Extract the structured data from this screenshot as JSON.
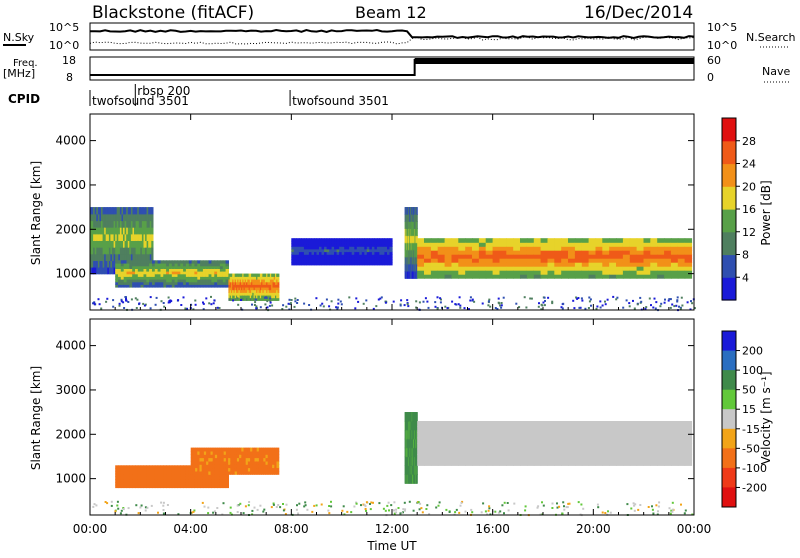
{
  "header": {
    "station": "Blackstone (fitACF)",
    "beam": "Beam 12",
    "date": "16/Dec/2014"
  },
  "side_labels": {
    "nsky": "N.Sky",
    "nsearch": "N.Search",
    "freq_line1": "Freq.",
    "freq_line2": "[MHz]",
    "nave": "Nave",
    "cpid": "CPID"
  },
  "noise_axis": {
    "left_top": "10^5",
    "left_bottom": "10^0",
    "right_top": "10^5",
    "right_bottom": "10^0"
  },
  "freq_axis": {
    "left_top": "18",
    "left_bottom": "8",
    "right_top": "60",
    "right_bottom": "0"
  },
  "cpid_modes": [
    {
      "label": "twofsound 3501",
      "start_ut": 0,
      "row": 2
    },
    {
      "label": "rbsp 200",
      "start_ut": 1.8,
      "row": 1
    },
    {
      "label": "twofsound 3501",
      "start_ut": 7.95,
      "row": 2
    }
  ],
  "x_axis": {
    "title": "Time UT",
    "ticks": [
      "00:00",
      "04:00",
      "08:00",
      "12:00",
      "16:00",
      "20:00",
      "00:00"
    ]
  },
  "y_axis": {
    "title": "Slant Range [km]",
    "ticks": [
      "1000",
      "2000",
      "3000",
      "4000"
    ]
  },
  "power_scale": {
    "title": "Power [dB]",
    "ticks": [
      "4",
      "8",
      "12",
      "16",
      "20",
      "24",
      "28"
    ],
    "colors": [
      "#1a1ad8",
      "#2f4fb0",
      "#4f7f5f",
      "#58a048",
      "#e7d32a",
      "#f29018",
      "#ef5a18",
      "#e01010"
    ]
  },
  "velocity_scale": {
    "title": "Velocity [m s⁻¹]",
    "ticks": [
      "200",
      "100",
      "50",
      "15",
      "-15",
      "-50",
      "-100",
      "-200"
    ],
    "colors": [
      "#1a1ad8",
      "#2a6ec0",
      "#3f8a4a",
      "#62c83a",
      "#c8c8c8",
      "#f2a418",
      "#f27018",
      "#ef3a18",
      "#e01010"
    ]
  },
  "chart_data": [
    {
      "type": "heatmap",
      "title": "Power",
      "xlabel": "Time UT",
      "ylabel": "Slant Range [km]",
      "xlim": [
        0,
        24
      ],
      "ylim": [
        180,
        4600
      ],
      "colorbar_label": "Power [dB]",
      "colorbar_range": [
        2,
        32
      ],
      "regions": [
        {
          "t_start": 0.0,
          "t_end": 2.5,
          "range_start_km": 1000,
          "range_end_km": 2500,
          "power_db": 18
        },
        {
          "t_start": 1.0,
          "t_end": 5.5,
          "range_start_km": 700,
          "range_end_km": 1300,
          "power_db": 20
        },
        {
          "t_start": 5.5,
          "t_end": 7.5,
          "range_start_km": 400,
          "range_end_km": 1000,
          "power_db": 26
        },
        {
          "t_start": 8.0,
          "t_end": 12.0,
          "range_start_km": 1200,
          "range_end_km": 1800,
          "power_db": 8
        },
        {
          "t_start": 12.5,
          "t_end": 13.0,
          "range_start_km": 900,
          "range_end_km": 2500,
          "power_db": 18
        },
        {
          "t_start": 13.0,
          "t_end": 23.9,
          "range_start_km": 900,
          "range_end_km": 1800,
          "power_db": 26
        }
      ]
    },
    {
      "type": "heatmap",
      "title": "Velocity",
      "xlabel": "Time UT",
      "ylabel": "Slant Range [km]",
      "xlim": [
        0,
        24
      ],
      "ylim": [
        180,
        4600
      ],
      "colorbar_label": "Velocity [m s⁻¹]",
      "colorbar_range": [
        -250,
        250
      ],
      "regions": [
        {
          "t_start": 1.0,
          "t_end": 5.5,
          "range_start_km": 800,
          "range_end_km": 1300,
          "velocity_ms": -60
        },
        {
          "t_start": 4.0,
          "t_end": 7.5,
          "range_start_km": 1100,
          "range_end_km": 1700,
          "velocity_ms": -40
        },
        {
          "t_start": 12.5,
          "t_end": 13.0,
          "range_start_km": 900,
          "range_end_km": 2500,
          "velocity_ms": 40
        },
        {
          "t_start": 13.0,
          "t_end": 23.9,
          "range_start_km": 1300,
          "range_end_km": 2300,
          "velocity_ms": 0
        }
      ]
    }
  ]
}
